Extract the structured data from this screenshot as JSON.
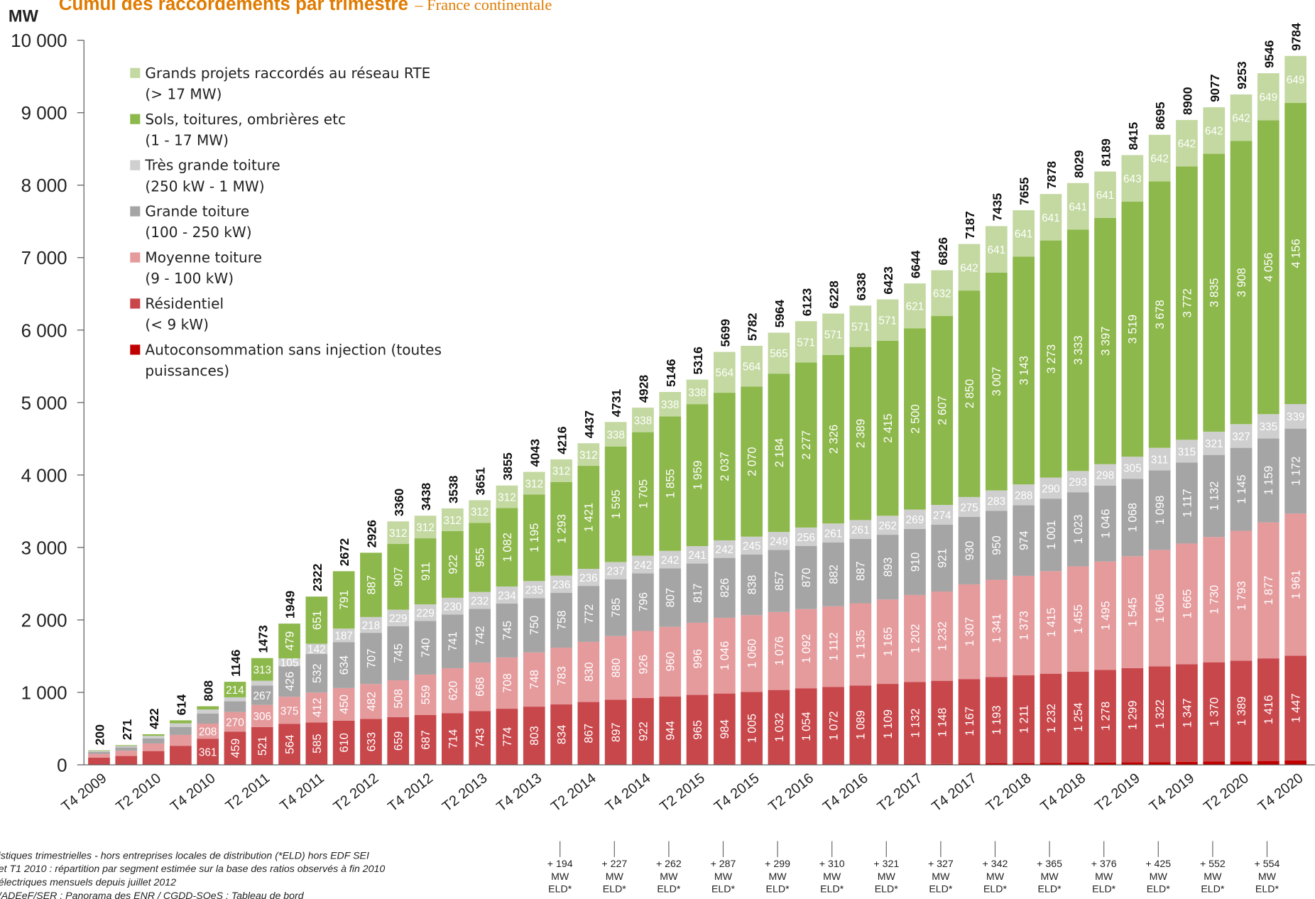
{
  "chart_data": {
    "type": "stacked_bar",
    "title": "Cumul des raccordements par trimestre",
    "subtitle": "– France continentale",
    "y_label": "MW",
    "categories": [
      "T4 2009",
      null,
      "T2 2010",
      null,
      "T4 2010",
      null,
      "T2 2011",
      null,
      "T4 2011",
      null,
      "T2 2012",
      null,
      "T4 2012",
      null,
      "T2 2013",
      null,
      "T4 2013",
      null,
      "T2 2014",
      null,
      "T4 2014",
      null,
      "T2 2015",
      null,
      "T4 2015",
      null,
      "T2 2016",
      null,
      "T4 2016",
      null,
      "T2 2017",
      null,
      "T4 2017",
      null,
      "T2 2018",
      null,
      "T4 2018",
      null,
      "T2 2019",
      null,
      "T4 2019",
      null,
      "T2 2020",
      null,
      "T4 2020"
    ],
    "series": [
      {
        "name": "Autoconsommation sans injection (toutes\npuissances)",
        "color": "#c00000",
        "values": [
          0,
          0,
          0,
          0,
          0,
          0,
          0,
          0,
          0,
          0,
          0,
          0,
          0,
          0,
          0,
          0,
          0,
          0,
          0,
          0,
          0,
          0,
          0,
          0,
          1,
          1,
          3,
          4,
          6,
          8,
          10,
          12,
          17,
          20,
          24,
          26,
          30,
          33,
          36,
          38,
          42,
          45,
          48,
          53,
          60
        ],
        "value_labels": [
          null,
          null,
          null,
          null,
          null,
          null,
          null,
          null,
          null,
          null,
          null,
          null,
          null,
          null,
          null,
          null,
          null,
          null,
          null,
          null,
          null,
          null,
          null,
          null,
          "1",
          "1",
          "3",
          "4",
          "6",
          "8",
          "10",
          "12",
          "17",
          "20",
          "24",
          "26",
          "30",
          "33",
          "36",
          "38",
          "42",
          "45",
          "48",
          "53",
          "60"
        ]
      },
      {
        "name": "Résidentiel\n(< 9 kW)",
        "color": "#c8474b",
        "values": [
          100,
          122,
          190,
          263,
          361,
          459,
          521,
          564,
          585,
          610,
          633,
          659,
          687,
          714,
          743,
          774,
          803,
          834,
          867,
          897,
          922,
          944,
          965,
          984,
          1005,
          1032,
          1054,
          1072,
          1089,
          1109,
          1132,
          1148,
          1167,
          1193,
          1211,
          1232,
          1254,
          1278,
          1299,
          1322,
          1347,
          1370,
          1389,
          1416,
          1447
        ],
        "value_labels": [
          null,
          null,
          null,
          null,
          "361",
          "459",
          "521",
          "564",
          "585",
          "610",
          "633",
          "659",
          "687",
          "714",
          "743",
          "774",
          "803",
          "834",
          "867",
          "897",
          "922",
          "944",
          "965",
          "984",
          "1 005",
          "1 032",
          "1 054",
          "1 072",
          "1 089",
          "1 109",
          "1 132",
          "1 148",
          "1 167",
          "1 193",
          "1 211",
          "1 232",
          "1 254",
          "1 278",
          "1 299",
          "1 322",
          "1 347",
          "1 370",
          "1 389",
          "1 416",
          "1 447"
        ]
      },
      {
        "name": "Moyenne toiture\n(9 - 100 kW)",
        "color": "#e59a9c",
        "values": [
          52,
          73,
          105,
          150,
          208,
          270,
          306,
          375,
          412,
          450,
          482,
          508,
          559,
          620,
          668,
          708,
          748,
          783,
          830,
          880,
          926,
          960,
          996,
          1046,
          1060,
          1076,
          1092,
          1112,
          1135,
          1165,
          1202,
          1232,
          1307,
          1341,
          1373,
          1415,
          1455,
          1495,
          1545,
          1606,
          1665,
          1730,
          1793,
          1877,
          1961
        ],
        "value_labels": [
          null,
          null,
          null,
          null,
          "208",
          "270",
          "306",
          "375",
          "412",
          "450",
          "482",
          "508",
          "559",
          "620",
          "668",
          "708",
          "748",
          "783",
          "830",
          "880",
          "926",
          "960",
          "996",
          "1 046",
          "1 060",
          "1 076",
          "1 092",
          "1 112",
          "1 135",
          "1 165",
          "1 202",
          "1 232",
          "1 307",
          "1 341",
          "1 373",
          "1 415",
          "1 455",
          "1 495",
          "1 545",
          "1 606",
          "1 665",
          "1 730",
          "1 793",
          "1 877",
          "1 961"
        ]
      },
      {
        "name": "Grande toiture\n(100 - 250 kW)",
        "color": "#a5a5a5",
        "values": [
          25,
          45,
          70,
          110,
          140,
          148,
          267,
          426,
          532,
          634,
          707,
          745,
          740,
          741,
          742,
          745,
          750,
          758,
          772,
          785,
          796,
          807,
          817,
          826,
          838,
          857,
          870,
          882,
          887,
          893,
          910,
          921,
          930,
          950,
          974,
          1001,
          1023,
          1046,
          1068,
          1098,
          1117,
          1132,
          1145,
          1159,
          1172
        ],
        "value_labels": [
          null,
          null,
          null,
          null,
          null,
          null,
          "267",
          "426",
          "532",
          "634",
          "707",
          "745",
          "740",
          "741",
          "742",
          "745",
          "750",
          "758",
          "772",
          "785",
          "796",
          "807",
          "817",
          "826",
          "838",
          "857",
          "870",
          "882",
          "887",
          "893",
          "910",
          "921",
          "930",
          "950",
          "974",
          "1 001",
          "1 023",
          "1 046",
          "1 068",
          "1 098",
          "1 117",
          "1 132",
          "1 145",
          "1 159",
          "1 172"
        ]
      },
      {
        "name": "Très grande toiture\n(250 kW - 1 MW)",
        "color": "#cfcfcf",
        "values": [
          15,
          20,
          35,
          50,
          55,
          55,
          66,
          105,
          142,
          187,
          218,
          229,
          229,
          230,
          232,
          234,
          235,
          236,
          236,
          237,
          242,
          242,
          241,
          242,
          245,
          249,
          256,
          261,
          261,
          262,
          269,
          274,
          275,
          283,
          288,
          290,
          293,
          298,
          305,
          311,
          315,
          321,
          327,
          335,
          339
        ],
        "value_labels": [
          null,
          null,
          null,
          null,
          null,
          null,
          null,
          "105",
          "142",
          "187",
          "218",
          "229",
          "229",
          "230",
          "232",
          "234",
          "235",
          "236",
          "236",
          "237",
          "242",
          "242",
          "241",
          "242",
          "245",
          "249",
          "256",
          "261",
          "261",
          "262",
          "269",
          "274",
          "275",
          "283",
          "288",
          "290",
          "293",
          "298",
          "305",
          "311",
          "315",
          "321",
          "327",
          "335",
          "339"
        ]
      },
      {
        "name": "Sols, toitures, ombrières etc\n(1 - 17 MW)",
        "color": "#8db84b",
        "values": [
          8,
          11,
          22,
          41,
          44,
          214,
          313,
          479,
          651,
          791,
          887,
          907,
          911,
          922,
          955,
          1082,
          1195,
          1293,
          1421,
          1595,
          1705,
          1855,
          1959,
          2037,
          2070,
          2184,
          2277,
          2326,
          2389,
          2415,
          2500,
          2607,
          2850,
          3007,
          3143,
          3273,
          3333,
          3397,
          3519,
          3678,
          3772,
          3835,
          3908,
          4056,
          4156
        ],
        "value_labels": [
          null,
          null,
          null,
          null,
          null,
          "214",
          "313",
          "479",
          "651",
          "791",
          "887",
          "907",
          "911",
          "922",
          "955",
          "1 082",
          "1 195",
          "1 293",
          "1 421",
          "1 595",
          "1 705",
          "1 855",
          "1 959",
          "2 037",
          "2 070",
          "2 184",
          "2 277",
          "2 326",
          "2 389",
          "2 415",
          "2 500",
          "2 607",
          "2 850",
          "3 007",
          "3 143",
          "3 273",
          "3 333",
          "3 397",
          "3 519",
          "3 678",
          "3 772",
          "3 835",
          "3 908",
          "4 056",
          "4 156"
        ]
      },
      {
        "name": "Grands projets raccordés au réseau RTE\n(> 17 MW)",
        "color": "#c3d9a1",
        "values": [
          0,
          0,
          0,
          0,
          0,
          0,
          0,
          0,
          0,
          0,
          0,
          312,
          312,
          312,
          312,
          312,
          312,
          312,
          312,
          338,
          338,
          338,
          338,
          564,
          564,
          565,
          571,
          571,
          571,
          571,
          621,
          632,
          642,
          641,
          641,
          641,
          641,
          641,
          643,
          642,
          642,
          642,
          642,
          649,
          649
        ],
        "value_labels": [
          null,
          null,
          null,
          null,
          null,
          null,
          null,
          null,
          null,
          null,
          null,
          "312",
          "312",
          "312",
          "312",
          "312",
          "312",
          "312",
          "312",
          "338",
          "338",
          "338",
          "338",
          "564",
          "564",
          "565",
          "571",
          "571",
          "571",
          "571",
          "621",
          "632",
          "642",
          "641",
          "641",
          "641",
          "641",
          "641",
          "643",
          "642",
          "642",
          "642",
          "642",
          "649",
          "649"
        ]
      }
    ],
    "totals": [
      200,
      271,
      422,
      614,
      808,
      1146,
      1473,
      1949,
      2322,
      2672,
      2926,
      3360,
      3438,
      3538,
      3651,
      3855,
      4043,
      4216,
      4437,
      4731,
      4928,
      5146,
      5316,
      5699,
      5782,
      5964,
      6123,
      6228,
      6338,
      6423,
      6644,
      6826,
      7187,
      7435,
      7655,
      7878,
      8029,
      8189,
      8415,
      8695,
      8900,
      9077,
      9253,
      9546,
      9784
    ],
    "ylim": [
      0,
      10000
    ],
    "yticks": [
      0,
      {
        "value": 1000,
        "label": "1 000"
      },
      {
        "value": 2000,
        "label": "2 000"
      },
      {
        "value": 3000,
        "label": "3 000"
      },
      {
        "value": 4000,
        "label": "4 000"
      },
      {
        "value": 5000,
        "label": "5 000"
      },
      {
        "value": 6000,
        "label": "6 000"
      },
      {
        "value": 7000,
        "label": "7 000"
      },
      {
        "value": 8000,
        "label": "8 000"
      },
      {
        "value": 9000,
        "label": "9 000"
      },
      {
        "value": 10000,
        "label": "10 000"
      }
    ],
    "eld_annotations": [
      [
        "+ 194",
        "MW",
        "ELD*"
      ],
      [
        "+ 227",
        "MW",
        "ELD*"
      ],
      [
        "+ 262",
        "MW",
        "ELD*"
      ],
      [
        "+ 287",
        "MW",
        "ELD*"
      ],
      [
        "+ 299",
        "MW",
        "ELD*"
      ],
      [
        "+ 310",
        "MW",
        "ELD*"
      ],
      [
        "+ 321",
        "MW",
        "ELD*"
      ],
      [
        "+ 327",
        "MW",
        "ELD*"
      ],
      [
        "+ 342",
        "MW",
        "ELD*"
      ],
      [
        "+ 365",
        "MW",
        "ELD*"
      ],
      [
        "+ 376",
        "MW",
        "ELD*"
      ],
      [
        "+ 425",
        "MW",
        "ELD*"
      ],
      [
        "+ 552",
        "MW",
        "ELD*"
      ],
      [
        "+ 554",
        "MW",
        "ELD*"
      ]
    ],
    "footnotes": [
      "istiques trimestrielles - hors entreprises locales de distribution (*ELD) hors EDF SEI",
      "et T1 2010 : répartition par segment estimée sur la base des ratios observés à fin 2010",
      "électriques mensuels depuis juillet 2012",
      "/ADEeF/SER : Panorama des ENR / CGDD-SOeS : Tableau de bord"
    ]
  }
}
